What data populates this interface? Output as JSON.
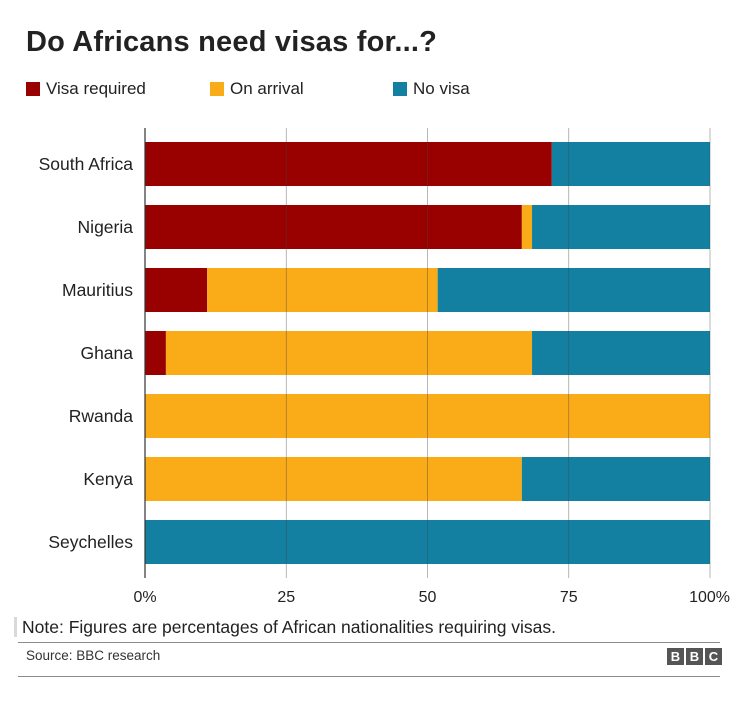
{
  "title": "Do Africans need visas for...?",
  "legend": [
    {
      "label": "Visa required",
      "color": "#990000"
    },
    {
      "label": "On arrival",
      "color": "#FAAB18"
    },
    {
      "label": "No visa",
      "color": "#1380A1"
    }
  ],
  "note": "Note: Figures are percentages of African nationalities requiring visas.",
  "source": "Source: BBC research",
  "logo": [
    "B",
    "B",
    "C"
  ],
  "chart_data": {
    "type": "bar",
    "orientation": "horizontal",
    "stacked": true,
    "categories": [
      "South Africa",
      "Nigeria",
      "Mauritius",
      "Ghana",
      "Rwanda",
      "Kenya",
      "Seychelles"
    ],
    "series": [
      {
        "name": "Visa required",
        "color": "#990000",
        "values": [
          72,
          66.7,
          11,
          3.7,
          0,
          0,
          0
        ]
      },
      {
        "name": "On arrival",
        "color": "#FAAB18",
        "values": [
          0,
          1.8,
          40.8,
          64.8,
          100,
          66.7,
          0
        ]
      },
      {
        "name": "No visa",
        "color": "#1380A1",
        "values": [
          28,
          31.5,
          48.2,
          31.5,
          0,
          33.3,
          100
        ]
      }
    ],
    "xlim": [
      0,
      100
    ],
    "xticks": [
      0,
      25,
      50,
      75,
      100
    ],
    "xtick_labels": [
      "0%",
      "25",
      "50",
      "75",
      "100%"
    ],
    "grid": true,
    "legend_position": "top-left"
  }
}
